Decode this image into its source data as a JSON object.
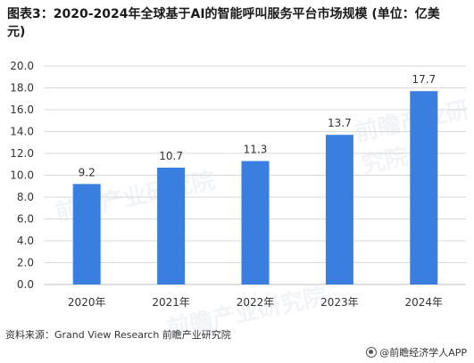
{
  "title": "图表3：2020-2024年全球基于AI的智能呼叫服务平台市场规模 (单位：亿美元)",
  "source": "资料来源：Grand View Research 前瞻产业研究院",
  "brand": "@前瞻经济学人APP",
  "watermark": "前瞻产业研究院",
  "colors": {
    "bar": "#3a7fe0",
    "grid": "#d9d9d9",
    "axis": "#bfbfbf",
    "text": "#333333"
  },
  "chart_data": {
    "type": "bar",
    "categories": [
      "2020年",
      "2021年",
      "2022年",
      "2023年",
      "2024年"
    ],
    "values": [
      9.2,
      10.7,
      11.3,
      13.7,
      17.7
    ],
    "data_labels": [
      "9.2",
      "10.7",
      "11.3",
      "13.7",
      "17.7"
    ],
    "ylim": [
      0,
      20
    ],
    "yticks": [
      "0.0",
      "2.0",
      "4.0",
      "6.0",
      "8.0",
      "10.0",
      "12.0",
      "14.0",
      "16.0",
      "18.0",
      "20.0"
    ],
    "grid": true,
    "xlabel": "",
    "ylabel": ""
  }
}
